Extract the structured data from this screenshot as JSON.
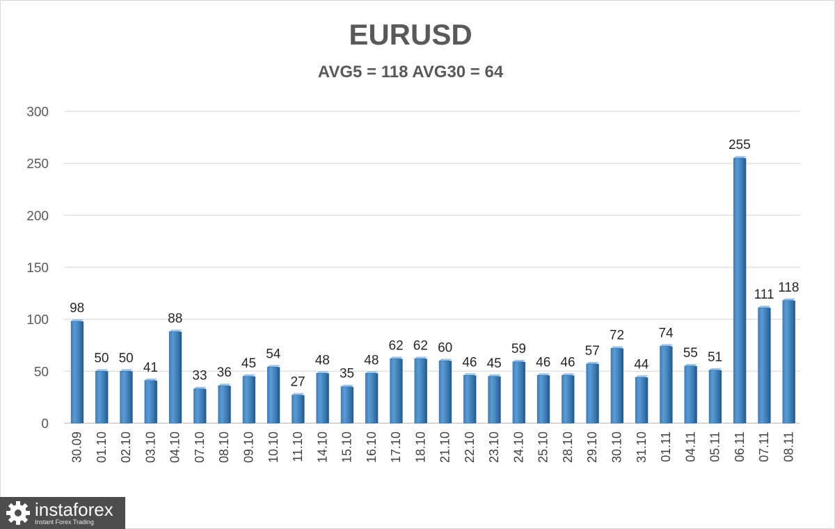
{
  "chart_data": {
    "type": "bar",
    "title": "EURUSD",
    "subtitle": "AVG5 = 118 AVG30 = 64",
    "categories": [
      "30.09",
      "01.10",
      "02.10",
      "03.10",
      "04.10",
      "07.10",
      "08.10",
      "09.10",
      "10.10",
      "11.10",
      "14.10",
      "15.10",
      "16.10",
      "17.10",
      "18.10",
      "21.10",
      "22.10",
      "23.10",
      "24.10",
      "25.10",
      "28.10",
      "29.10",
      "30.10",
      "31.10",
      "01.11",
      "04.11",
      "05.11",
      "06.11",
      "07.11",
      "08.11"
    ],
    "values": [
      98,
      50,
      50,
      41,
      88,
      33,
      36,
      45,
      54,
      27,
      48,
      35,
      48,
      62,
      62,
      60,
      46,
      45,
      59,
      46,
      46,
      57,
      72,
      44,
      74,
      55,
      51,
      255,
      111,
      118
    ],
    "ylim": [
      0,
      300
    ],
    "yticks": [
      0,
      50,
      100,
      150,
      200,
      250,
      300
    ],
    "grid": true,
    "bar_color": "#5b9bd5",
    "xlabel": "",
    "ylabel": ""
  },
  "watermark": {
    "brand": "instaforex",
    "tagline": "Instant Forex Trading"
  }
}
